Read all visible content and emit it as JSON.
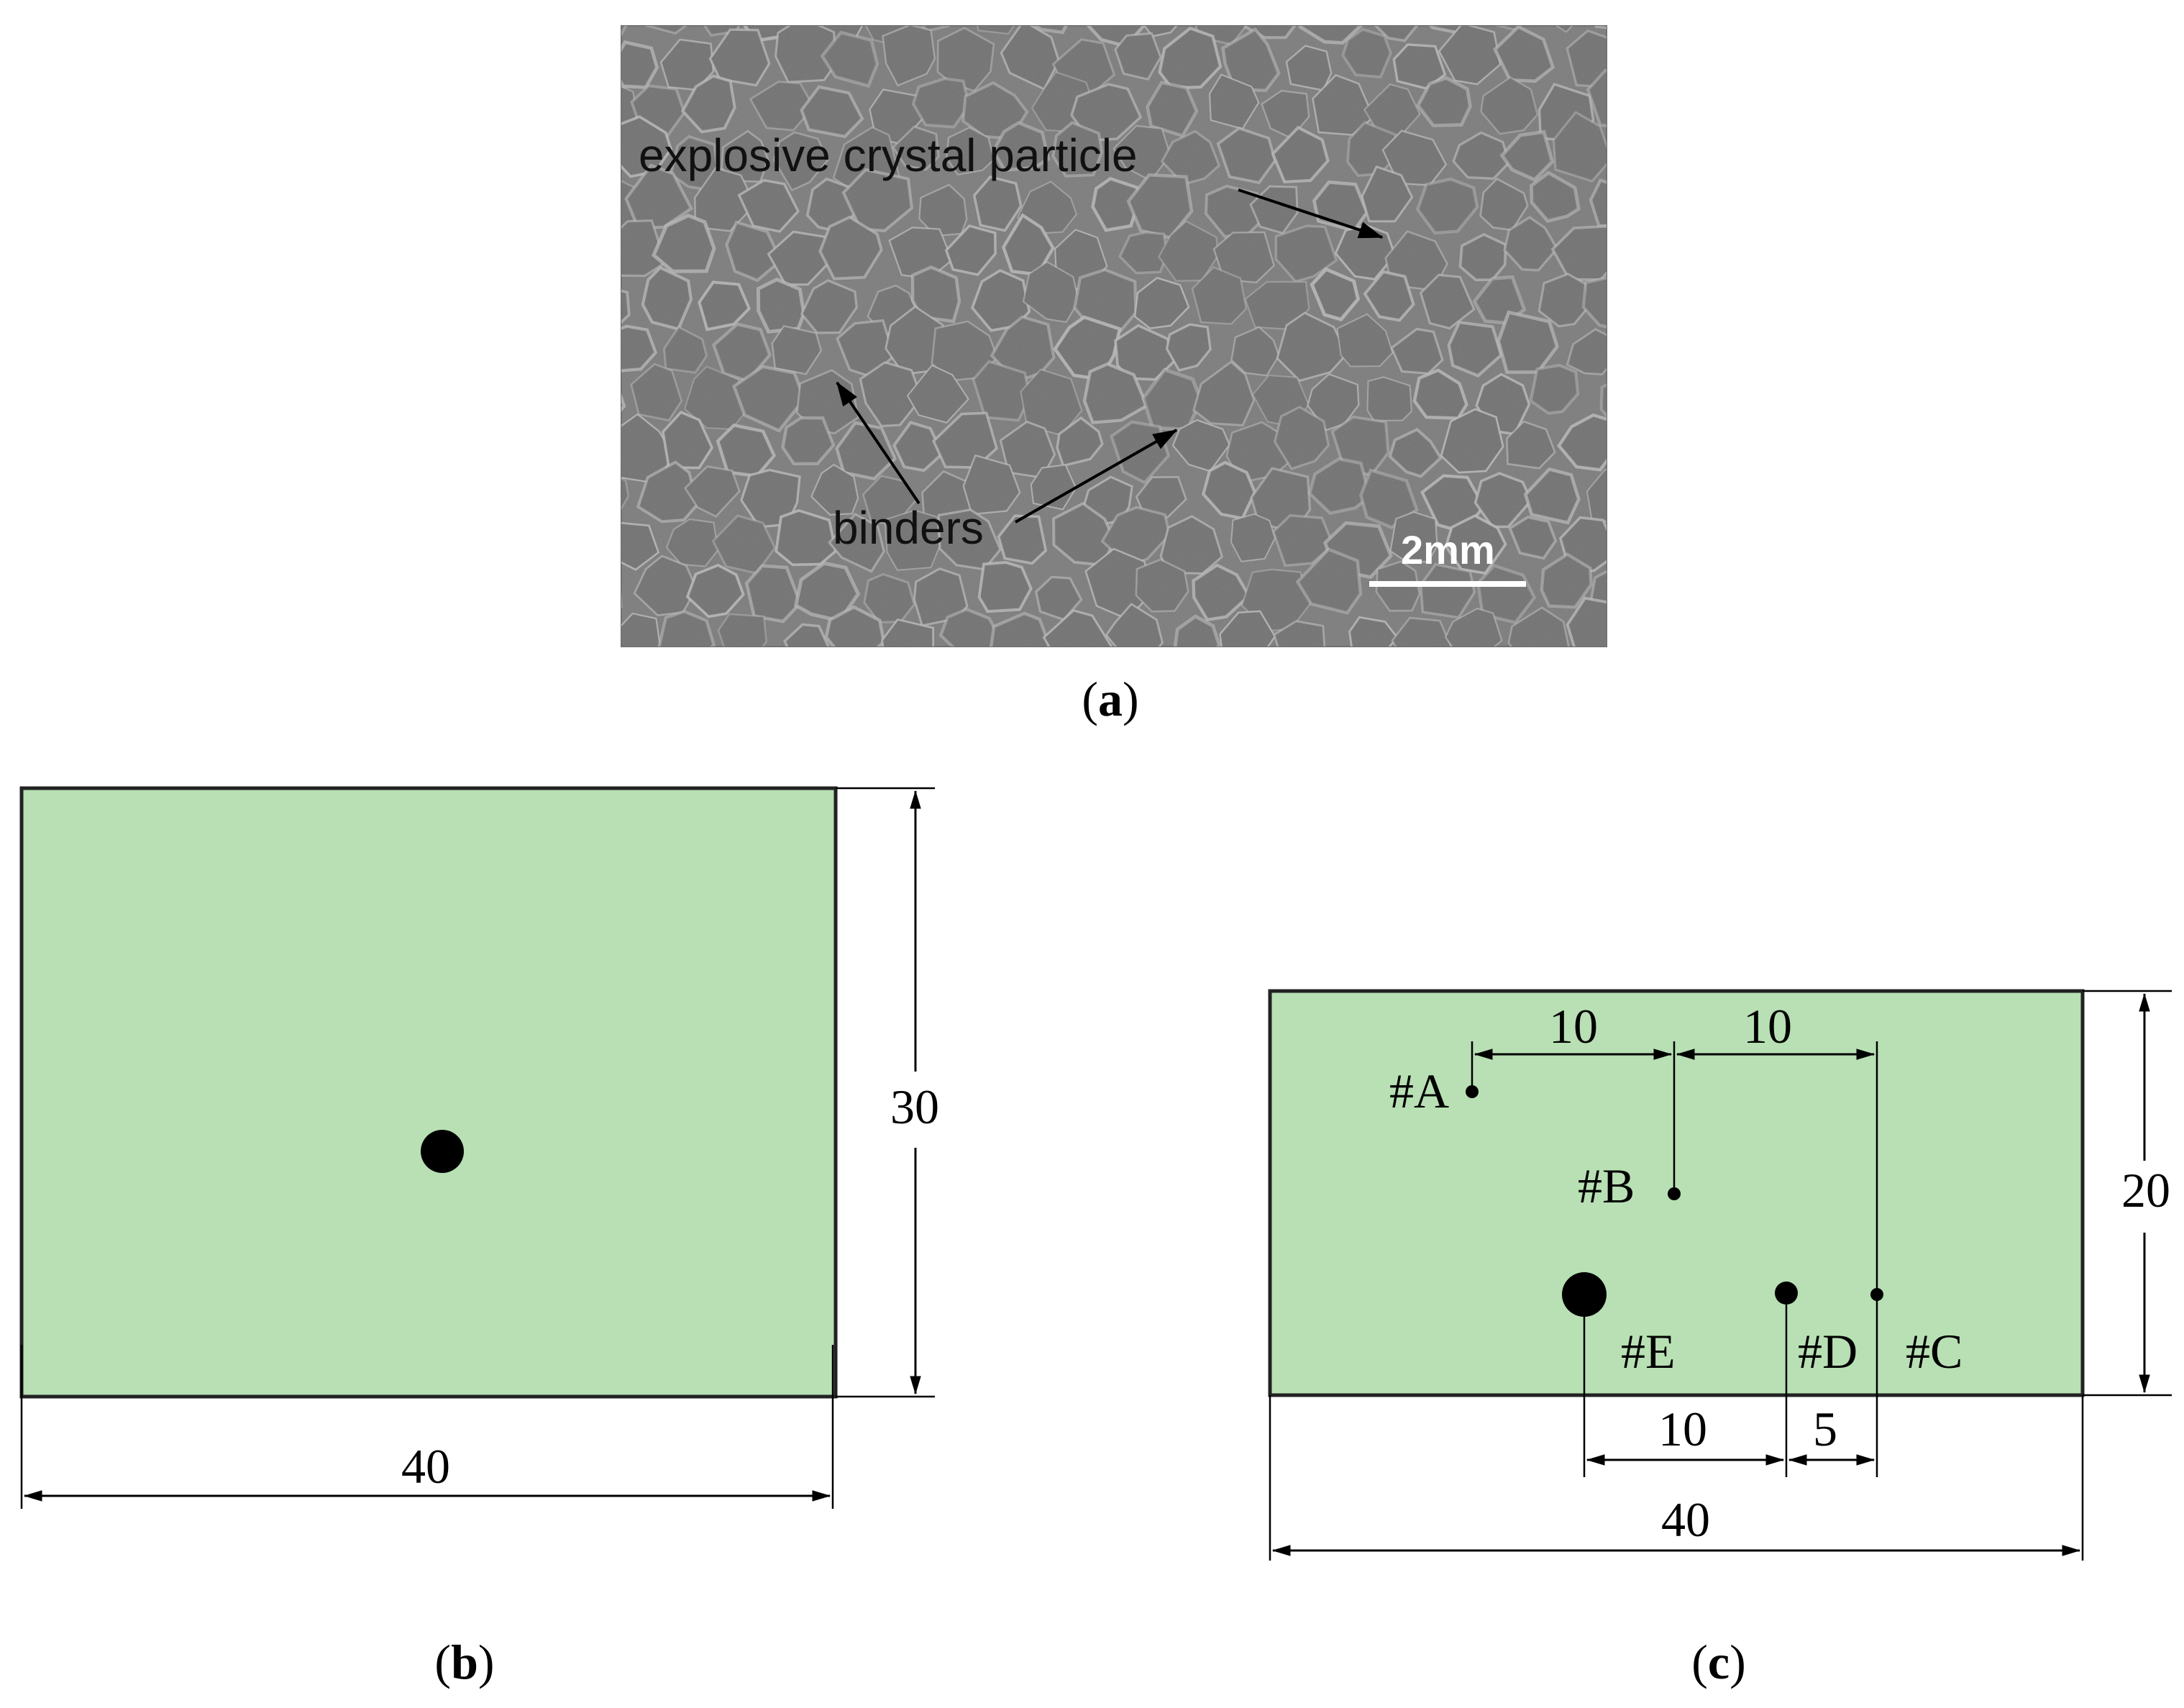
{
  "panel_a": {
    "label_open": "(",
    "label_letter": "a",
    "label_close": ")",
    "annotation_crystal": "explosive crystal particle",
    "annotation_binders": "binders",
    "scale_bar_text": "2mm",
    "image_description_colors": {
      "background": "#7a7a7a",
      "grain": "#6e6e6e",
      "boundary": "#bdbdbd"
    }
  },
  "panel_b": {
    "label_open": "(",
    "label_letter": "b",
    "label_close": ")",
    "width_dim": "40",
    "height_dim": "30",
    "fill_color": "#b8e0b4"
  },
  "panel_c": {
    "label_open": "(",
    "label_letter": "c",
    "label_close": ")",
    "width_dim": "40",
    "height_dim": "20",
    "fill_color": "#b8e0b4",
    "points": {
      "A": "#A",
      "B": "#B",
      "C": "#C",
      "D": "#D",
      "E": "#E"
    },
    "dims": {
      "ab": "10",
      "bc": "10",
      "ed": "10",
      "dc": "5"
    }
  }
}
